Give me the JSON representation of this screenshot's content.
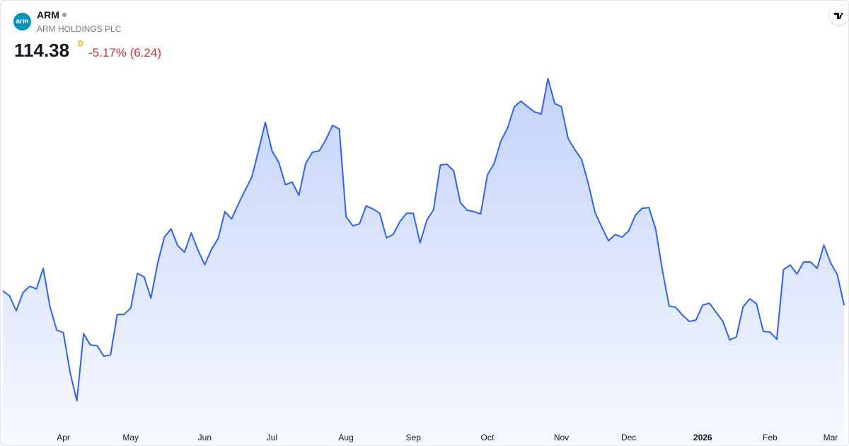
{
  "header": {
    "logo": "arm",
    "symbol": "ARM",
    "name": "ARM HOLDINGS PLC",
    "price": "114.38",
    "price_flag": "D",
    "change": "-5.17% (6.24)"
  },
  "chart_data": {
    "type": "area",
    "color": "#2f62ee",
    "categories": [
      null,
      null,
      null,
      null,
      null,
      null,
      null,
      null,
      null,
      "Apr",
      null,
      null,
      null,
      null,
      null,
      null,
      null,
      null,
      null,
      "May",
      null,
      null,
      null,
      null,
      null,
      null,
      null,
      null,
      null,
      null,
      "Jun",
      null,
      null,
      null,
      null,
      null,
      null,
      null,
      null,
      null,
      "Jul",
      null,
      null,
      null,
      null,
      null,
      null,
      null,
      null,
      null,
      null,
      "Aug",
      null,
      null,
      null,
      null,
      null,
      null,
      null,
      null,
      null,
      "Sep",
      null,
      null,
      null,
      null,
      null,
      null,
      null,
      null,
      null,
      null,
      "Oct",
      null,
      null,
      null,
      null,
      null,
      null,
      null,
      null,
      null,
      null,
      "Nov",
      null,
      null,
      null,
      null,
      null,
      null,
      null,
      null,
      null,
      "Dec",
      null,
      null,
      null,
      null,
      null,
      null,
      null,
      null,
      null,
      null,
      "2026",
      null,
      null,
      null,
      null,
      null,
      null,
      null,
      null,
      null,
      "Feb",
      null,
      null,
      null,
      null,
      null,
      null,
      null,
      null,
      "Mar",
      null,
      null
    ],
    "values": [
      118.7,
      117.2,
      112.7,
      118.2,
      120.1,
      119.3,
      125.5,
      114.0,
      106.9,
      106.1,
      94.1,
      85.6,
      105.8,
      102.4,
      102.2,
      99.0,
      99.4,
      111.6,
      111.6,
      113.5,
      124.0,
      122.9,
      116.5,
      127.0,
      134.9,
      137.4,
      132.3,
      130.4,
      136.2,
      131.0,
      126.6,
      131.2,
      134.5,
      142.6,
      140.4,
      144.9,
      149.0,
      153.0,
      161.1,
      169.5,
      160.9,
      157.5,
      150.7,
      151.5,
      147.5,
      157.1,
      160.5,
      160.9,
      164.3,
      168.6,
      167.5,
      141.1,
      138.3,
      138.9,
      144.3,
      143.4,
      142.1,
      134.7,
      135.7,
      139.6,
      142.1,
      142.1,
      133.2,
      140.0,
      143.2,
      156.6,
      156.9,
      154.9,
      145.3,
      143.0,
      142.6,
      141.9,
      153.7,
      157.1,
      163.9,
      167.8,
      174.2,
      175.9,
      174.2,
      172.7,
      172.0,
      182.7,
      175.2,
      174.2,
      164.6,
      161.3,
      158.4,
      151.1,
      142.3,
      137.9,
      133.8,
      135.7,
      134.9,
      136.8,
      141.5,
      143.6,
      143.8,
      137.4,
      125.0,
      114.2,
      113.7,
      111.4,
      109.5,
      109.9,
      114.4,
      115.0,
      112.2,
      109.5,
      103.9,
      104.8,
      113.9,
      116.3,
      114.8,
      106.5,
      106.3,
      104.1,
      125.1,
      126.5,
      123.8,
      127.4,
      127.4,
      125.5,
      132.5,
      127.2,
      123.6,
      114.38
    ]
  }
}
